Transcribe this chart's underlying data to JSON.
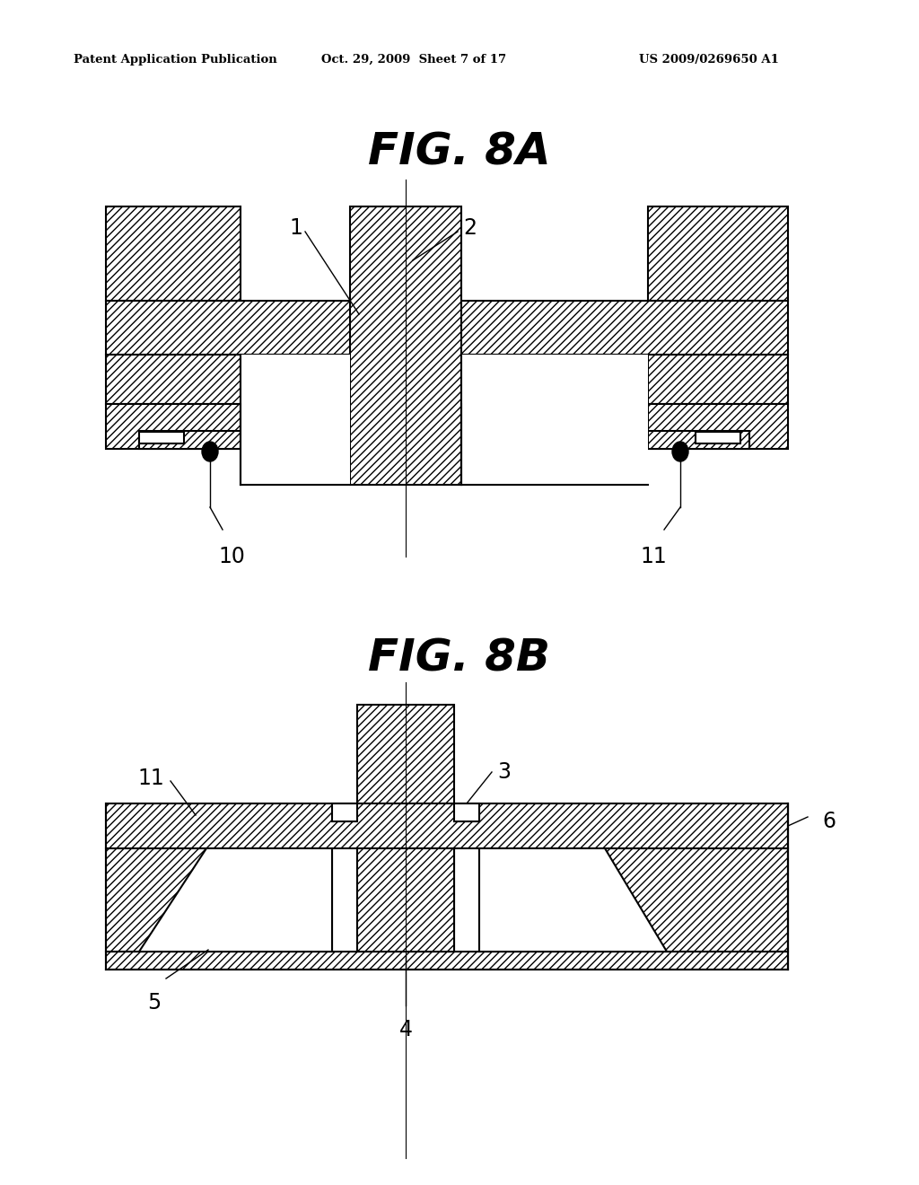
{
  "background_color": "#ffffff",
  "header_left": "Patent Application Publication",
  "header_center": "Oct. 29, 2009  Sheet 7 of 17",
  "header_right": "US 2009/0269650 A1",
  "fig8a_title": "FIG. 8A",
  "fig8b_title": "FIG. 8B"
}
